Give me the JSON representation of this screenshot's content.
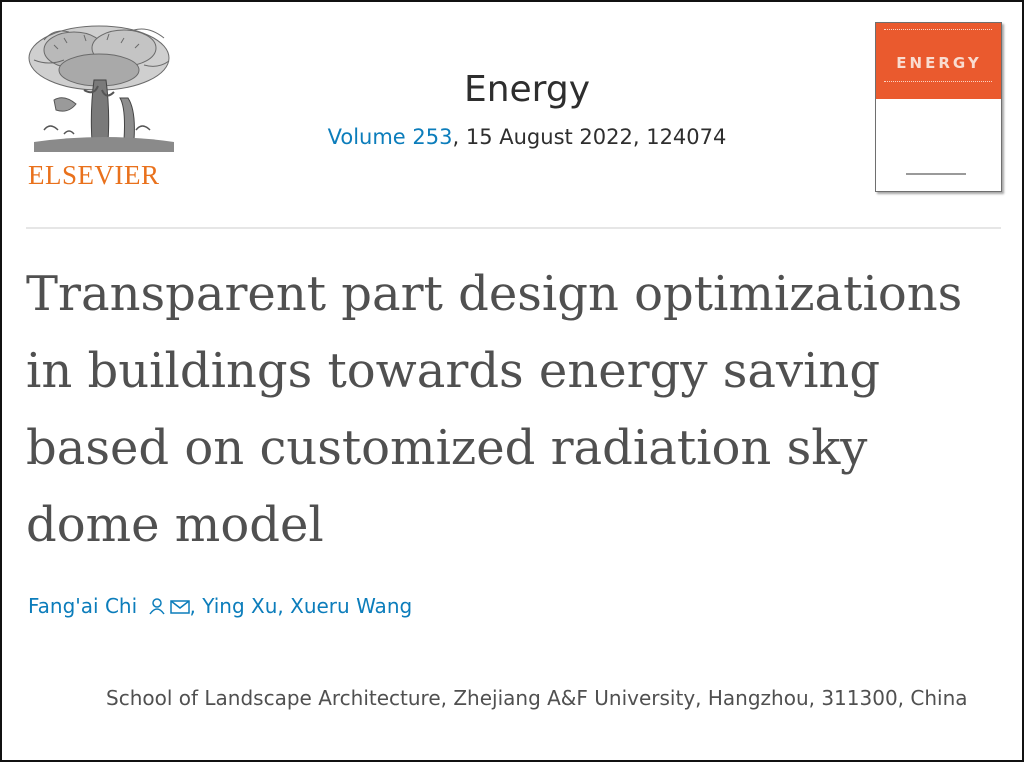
{
  "publisher": {
    "name": "ELSEVIER"
  },
  "journal": {
    "title": "Energy",
    "volume_link": "Volume 253",
    "issue_info": ", 15 August 2022, 124074",
    "cover_word": "ENERGY"
  },
  "article": {
    "title": "Transparent part design optimizations in buildings towards energy saving based on customized radiation sky dome model"
  },
  "authors": {
    "first": "Fang'ai Chi",
    "rest": ", Ying Xu, Xueru Wang",
    "icons": [
      "person-icon",
      "envelope-icon"
    ]
  },
  "affiliation": {
    "text": "School of Landscape Architecture, Zhejiang A&F University, Hangzhou, 311300, China"
  },
  "colors": {
    "link": "#0c7dbb",
    "publisher_orange": "#e9711c",
    "cover_orange": "#ea5a2e",
    "text": "#505050"
  }
}
